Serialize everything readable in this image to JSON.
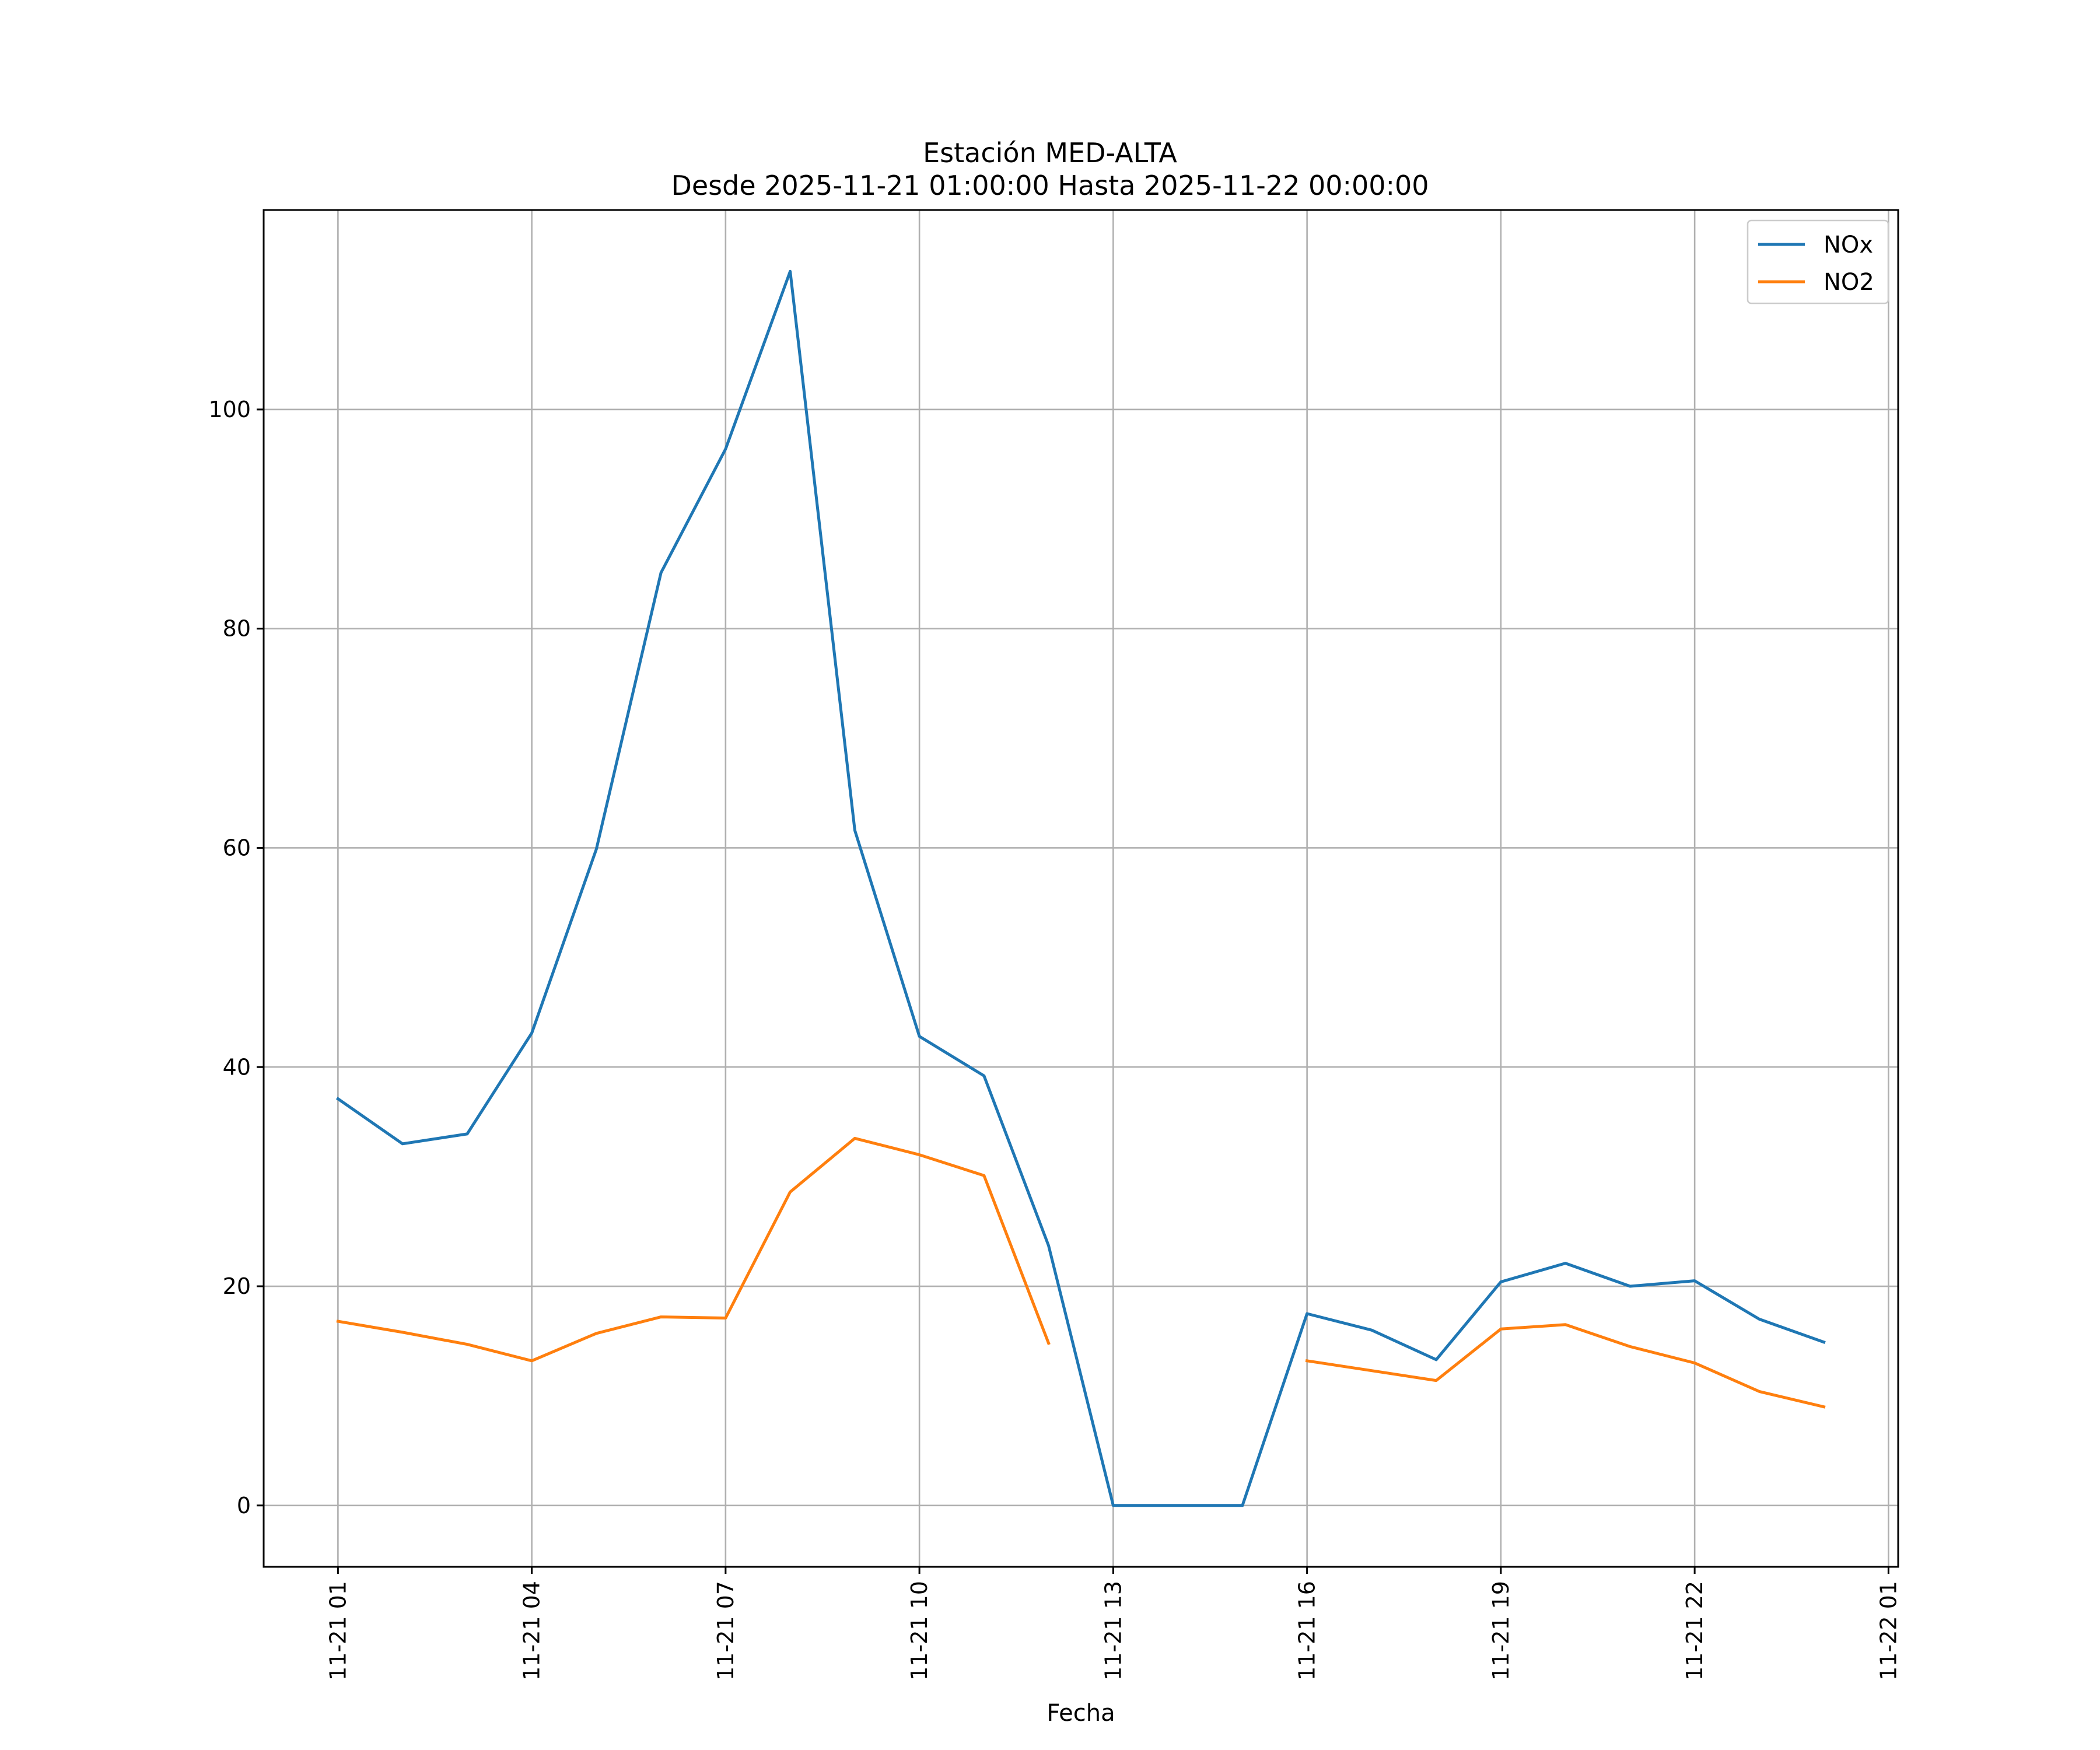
{
  "chart_data": {
    "type": "line",
    "title_line1": "Estación MED-ALTA",
    "title_line2": "Desde 2025-11-21 01:00:00 Hasta 2025-11-22 00:00:00",
    "xlabel": "Fecha",
    "ylabel": "",
    "x": [
      "2025-11-21 01:00",
      "2025-11-21 02:00",
      "2025-11-21 03:00",
      "2025-11-21 04:00",
      "2025-11-21 05:00",
      "2025-11-21 06:00",
      "2025-11-21 07:00",
      "2025-11-21 08:00",
      "2025-11-21 09:00",
      "2025-11-21 10:00",
      "2025-11-21 11:00",
      "2025-11-21 12:00",
      "2025-11-21 13:00",
      "2025-11-21 14:00",
      "2025-11-21 15:00",
      "2025-11-21 16:00",
      "2025-11-21 17:00",
      "2025-11-21 18:00",
      "2025-11-21 19:00",
      "2025-11-21 20:00",
      "2025-11-21 21:00",
      "2025-11-21 22:00",
      "2025-11-21 23:00",
      "2025-11-22 00:00"
    ],
    "series": [
      {
        "name": "NOx",
        "color": "#1f77b4",
        "values": [
          37.1,
          33.0,
          33.9,
          43.1,
          59.9,
          85.1,
          96.4,
          112.6,
          61.6,
          42.8,
          39.2,
          23.7,
          0.0,
          0.0,
          0.0,
          17.5,
          16.0,
          13.3,
          20.4,
          22.1,
          20.0,
          20.5,
          17.0,
          14.9
        ]
      },
      {
        "name": "NO2",
        "color": "#ff7f0e",
        "values": [
          16.8,
          15.8,
          14.7,
          13.2,
          15.7,
          17.2,
          17.1,
          28.6,
          33.5,
          32.0,
          30.1,
          14.8,
          null,
          null,
          null,
          13.2,
          12.3,
          11.4,
          16.1,
          16.5,
          14.5,
          13.0,
          10.4,
          9.0
        ]
      }
    ],
    "xticks": [
      "11-21 01",
      "11-21 04",
      "11-21 07",
      "11-21 10",
      "11-21 13",
      "11-21 16",
      "11-21 19",
      "11-21 22",
      "11-22 01"
    ],
    "yticks": [
      "0",
      "20",
      "40",
      "60",
      "80",
      "100"
    ],
    "x_range": [
      "2025-11-20 23:51",
      "2025-11-22 01:09"
    ],
    "ylim": [
      -5.6,
      118.2
    ],
    "grid": true,
    "legend_position": "top-right"
  }
}
